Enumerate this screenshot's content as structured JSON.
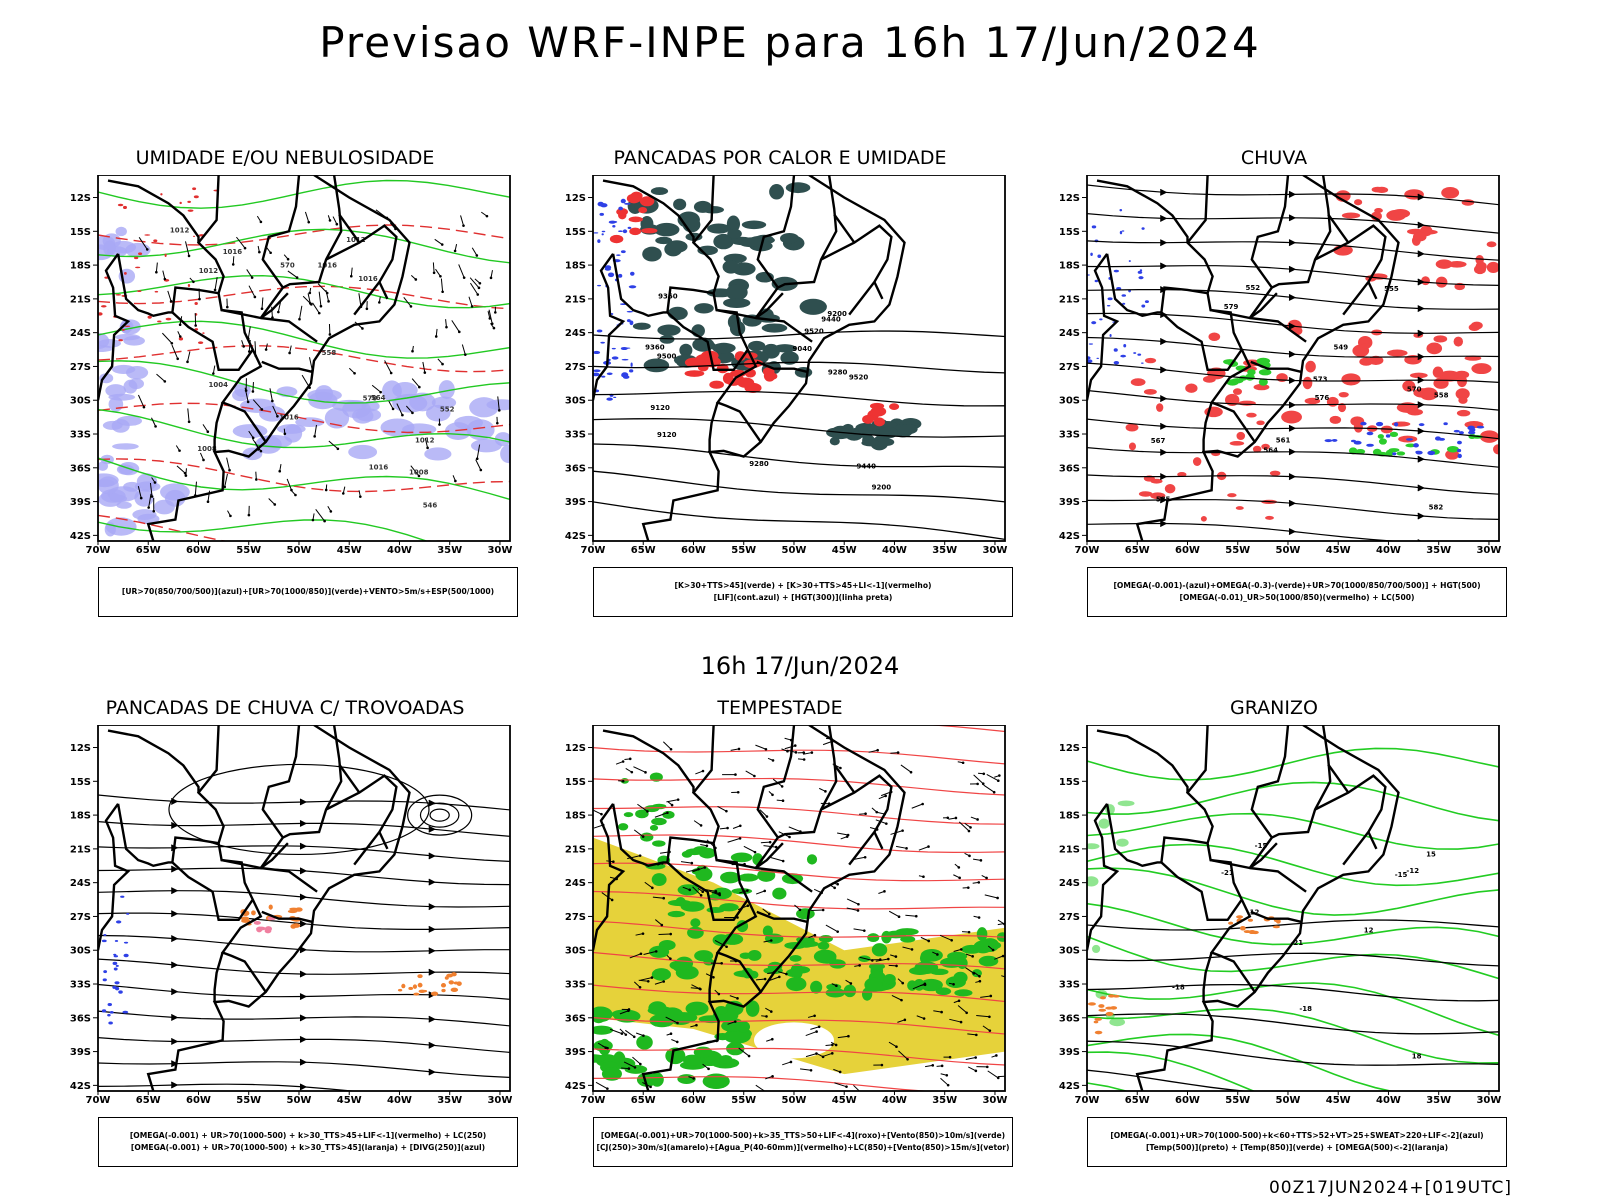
{
  "title": "Previsao WRF-INPE  para 16h 17/Jun/2024",
  "subtitle": "16h 17/Jun/2024",
  "run": "00Z17JUN2024+[019UTC]",
  "axes": {
    "lat_labels": [
      "12S",
      "15S",
      "18S",
      "21S",
      "24S",
      "27S",
      "30S",
      "33S",
      "36S",
      "39S",
      "42S"
    ],
    "lon_labels": [
      "70W",
      "65W",
      "60W",
      "55W",
      "50W",
      "45W",
      "40W",
      "35W",
      "30W"
    ]
  },
  "panels": [
    {
      "title": "UMIDADE E/OU NEBULOSIDADE",
      "legend": [
        "[UR>70(850/700/500)](azul)+[UR>70(1000/850)](verde)+VENTO>5m/s+ESP(500/1000)"
      ],
      "labels": [
        "1012",
        "1012",
        "1016",
        "1016",
        "1016",
        "1008",
        "1008",
        "1012",
        "1016",
        "1012",
        "1004",
        "1016",
        "570",
        "570",
        "564",
        "558",
        "552",
        "546"
      ]
    },
    {
      "title": "PANCADAS POR CALOR E UMIDADE",
      "legend": [
        "[K>30+TTS>45](verde) + [K>30+TTS>45+LI<-1](vermelho)",
        "[LIF](cont.azul) + [HGT(300)](linha preta)"
      ],
      "labels": [
        "9520",
        "9440",
        "9360",
        "9280",
        "9200",
        "9120",
        "9040",
        "9500",
        "9440",
        "9520",
        "9360",
        "9280",
        "9200",
        "9120"
      ]
    },
    {
      "title": "CHUVA",
      "legend": [
        "[OMEGA(-0.001)-(azul)+OMEGA(-0.3)-(verde)+UR>70(1000/850/700/500)] + HGT(500)",
        "[OMEGA(-0.01)_UR>50(1000/850)(vermelho) + LC(500)"
      ],
      "labels": [
        "582",
        "579",
        "576",
        "573",
        "570",
        "567",
        "564",
        "561",
        "558",
        "555",
        "552",
        "549",
        "585"
      ]
    },
    {
      "title": "PANCADAS DE CHUVA C/ TROVOADAS",
      "legend": [
        "[OMEGA(-0.001) + UR>70(1000-500) + k>30_TTS>45+LIF<-1](vermelho) + LC(250)",
        "[OMEGA(-0.001) + UR>70(1000-500) + k>30_TTS>45](laranja) + [DIVG(250)](azul)"
      ],
      "labels": []
    },
    {
      "title": "TEMPESTADE",
      "legend": [
        "[OMEGA(-0.001)+UR>70(1000-500)+k>35_TTS>50+LIF<-4](roxo)+[Vento(850)>10m/s](verde)",
        "[CJ(250)>30m/s](amarelo)+[Agua_P(40-60mm)](vermelho)+LC(850)+[Vento(850)>15m/s](vetor)"
      ],
      "labels": []
    },
    {
      "title": "GRANIZO",
      "legend": [
        "[OMEGA(-0.001)+UR>70(1000-500)+k<60+TTS>52+VT>25+SWEAT>220+LIF<-2](azul)",
        "[Temp(500)](preto) + [Temp(850)](verde) + [OMEGA(500)<-2](laranja)"
      ],
      "labels": [
        "-12",
        "-15",
        "-18",
        "-21",
        "-12",
        "-15",
        "-18",
        "-21",
        "12",
        "15",
        "18"
      ]
    }
  ]
}
